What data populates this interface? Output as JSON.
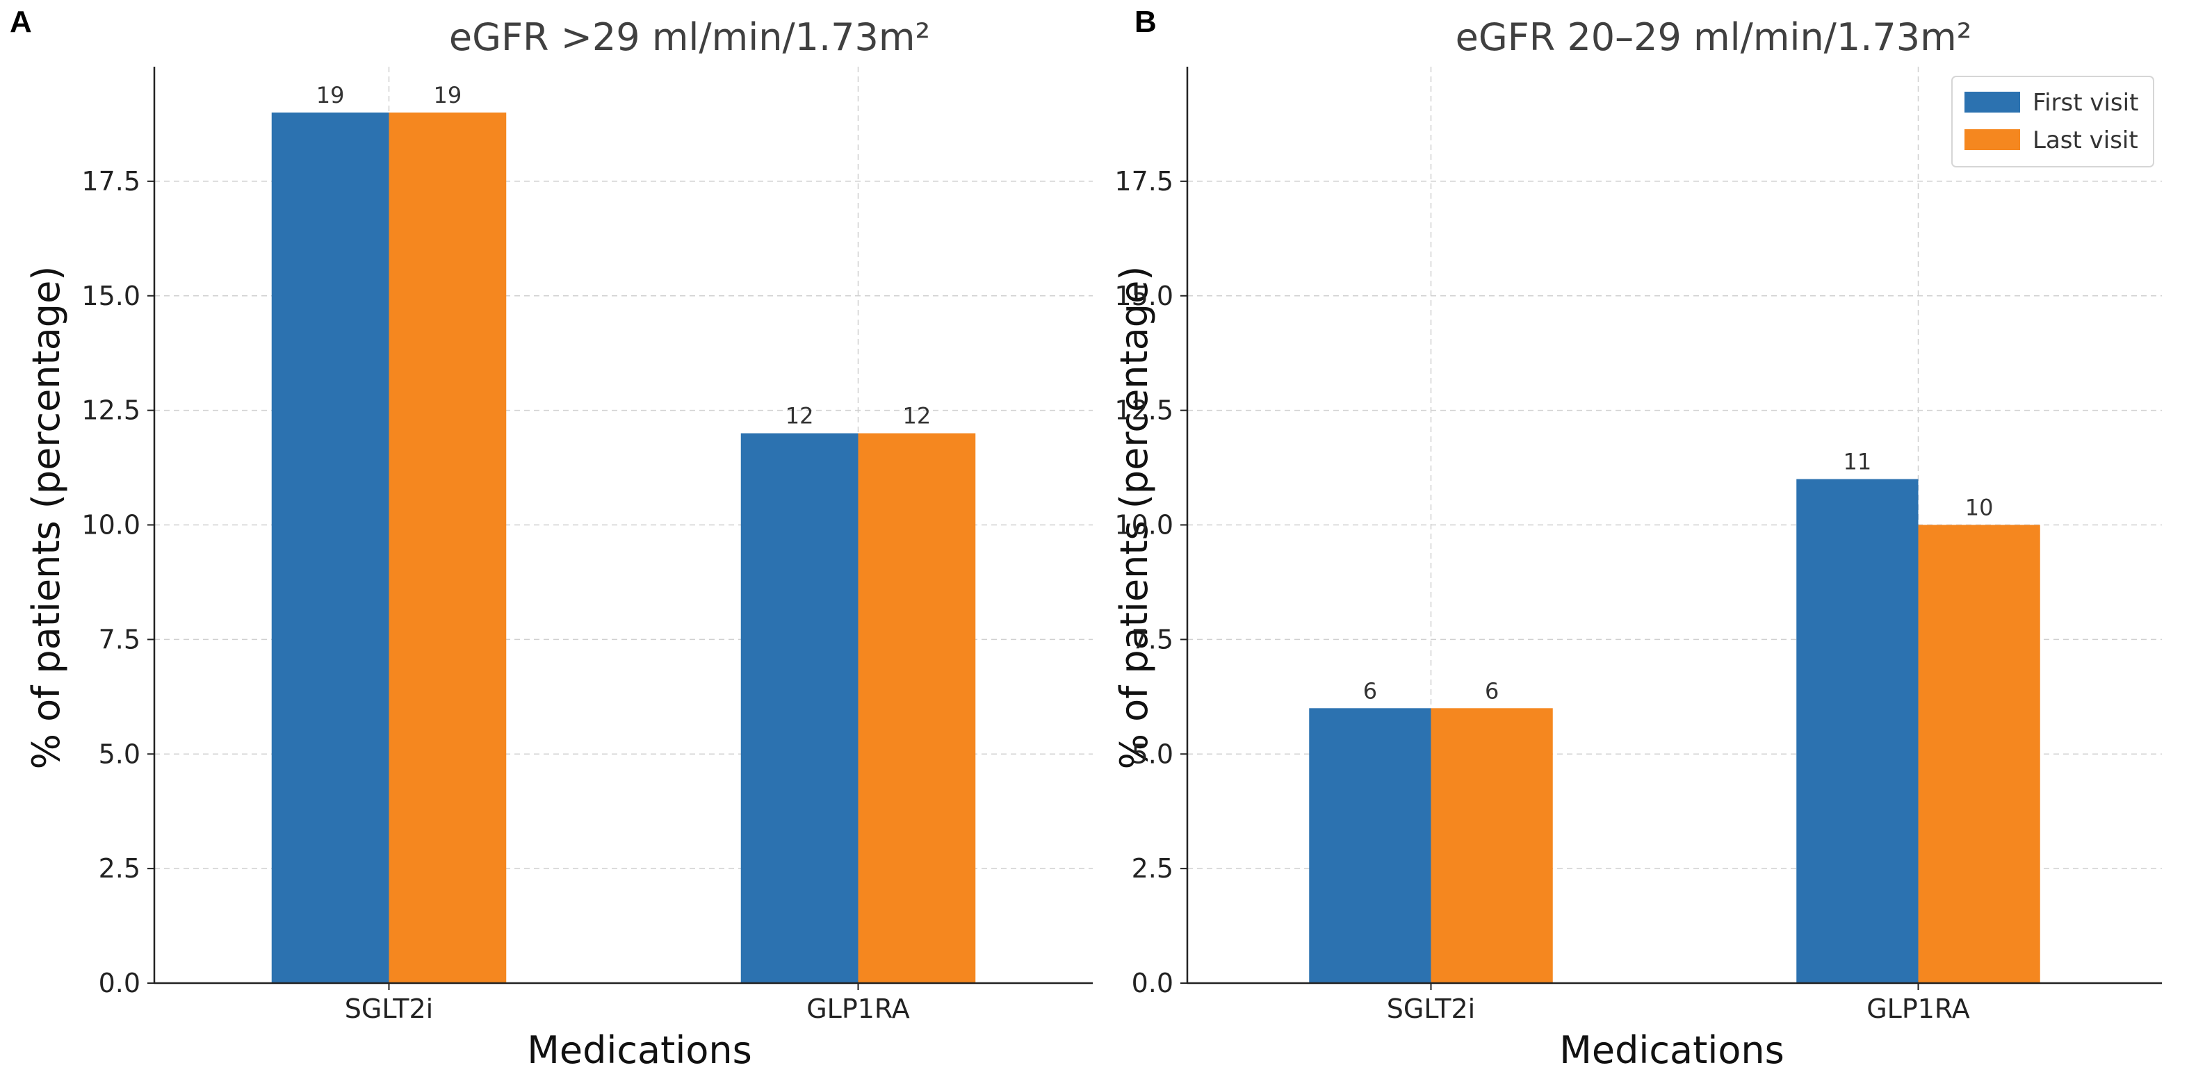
{
  "colors": {
    "first_visit": "#2c72b0",
    "last_visit": "#f5871f"
  },
  "chart_data": [
    {
      "panel": "A",
      "type": "bar",
      "title": "eGFR >29 ml/min/1.73m²",
      "xlabel": "Medications",
      "ylabel": "% of patients (percentage)",
      "categories": [
        "SGLT2i",
        "GLP1RA"
      ],
      "series": [
        {
          "name": "First visit",
          "values": [
            19,
            12
          ]
        },
        {
          "name": "Last visit",
          "values": [
            19,
            12
          ]
        }
      ],
      "ylim": [
        0,
        20
      ],
      "yticks": [
        0.0,
        2.5,
        5.0,
        7.5,
        10.0,
        12.5,
        15.0,
        17.5
      ],
      "ytick_labels": [
        "0.0",
        "2.5",
        "5.0",
        "7.5",
        "10.0",
        "12.5",
        "15.0",
        "17.5"
      ],
      "grid": true,
      "legend": false
    },
    {
      "panel": "B",
      "type": "bar",
      "title": "eGFR 20–29 ml/min/1.73m²",
      "xlabel": "Medications",
      "ylabel": "% of patients (percentage)",
      "categories": [
        "SGLT2i",
        "GLP1RA"
      ],
      "series": [
        {
          "name": "First visit",
          "values": [
            6,
            11
          ]
        },
        {
          "name": "Last visit",
          "values": [
            6,
            10
          ]
        }
      ],
      "ylim": [
        0,
        20
      ],
      "yticks": [
        0.0,
        2.5,
        5.0,
        7.5,
        10.0,
        12.5,
        15.0,
        17.5
      ],
      "ytick_labels": [
        "0.0",
        "2.5",
        "5.0",
        "7.5",
        "10.0",
        "12.5",
        "15.0",
        "17.5"
      ],
      "grid": true,
      "legend": true,
      "legend_position": "top-right"
    }
  ]
}
